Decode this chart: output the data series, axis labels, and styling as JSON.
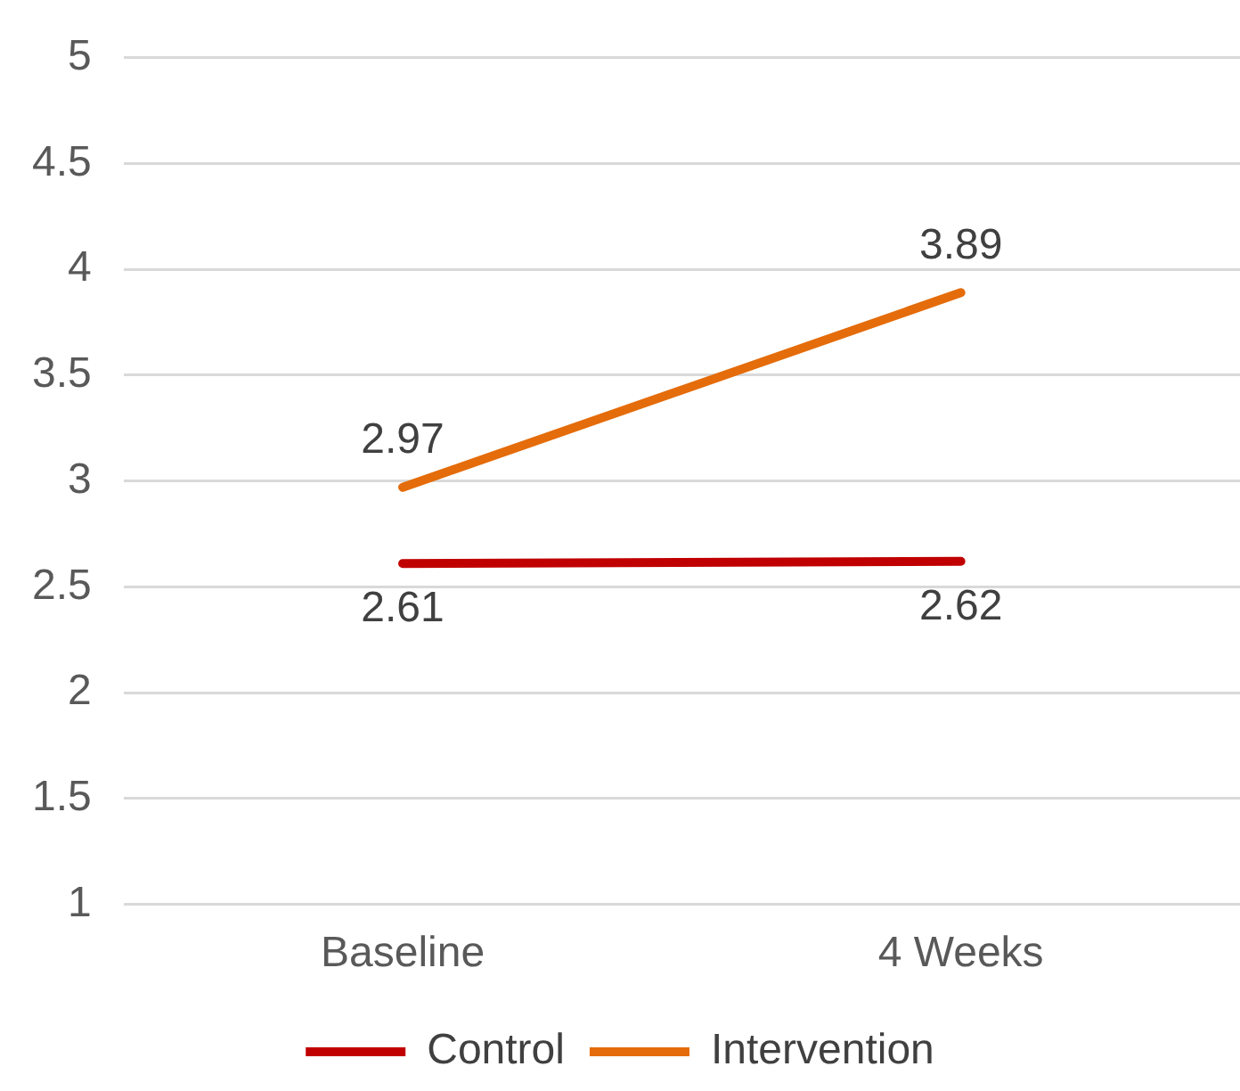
{
  "chart_data": {
    "type": "line",
    "categories": [
      "Baseline",
      "4 Weeks"
    ],
    "series": [
      {
        "name": "Control",
        "color": "#c00000",
        "values": [
          2.61,
          2.62
        ]
      },
      {
        "name": "Intervention",
        "color": "#e46c0a",
        "values": [
          2.97,
          3.89
        ]
      }
    ],
    "ylim": [
      1,
      5
    ],
    "yticks": [
      1,
      1.5,
      2,
      2.5,
      3,
      3.5,
      4,
      4.5,
      5
    ],
    "grid": "y",
    "legend": "bottom",
    "data_labels": true,
    "marker": "none",
    "line_style": "solid"
  }
}
